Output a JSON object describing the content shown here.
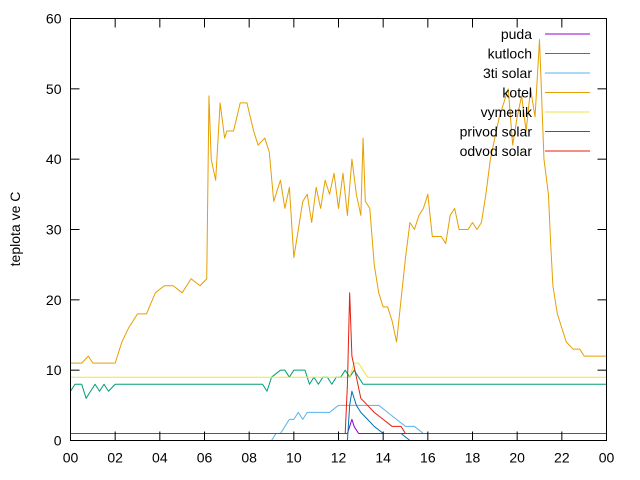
{
  "chart_data": {
    "type": "line",
    "title": "",
    "xlabel": "",
    "ylabel": "teplota ve C",
    "xlim": [
      0,
      24
    ],
    "ylim": [
      0,
      60
    ],
    "x_ticks": [
      "00",
      "02",
      "04",
      "06",
      "08",
      "10",
      "12",
      "14",
      "16",
      "18",
      "20",
      "22",
      "00"
    ],
    "y_ticks": [
      "0",
      "10",
      "20",
      "30",
      "40",
      "50",
      "60"
    ],
    "grid": false,
    "legend_position": "top-right",
    "series": [
      {
        "name": "puda",
        "color": "#9400d3",
        "x": [
          0,
          12.4,
          12.5,
          12.6,
          12.7,
          12.9,
          13.0,
          24
        ],
        "y": [
          1,
          1,
          2,
          3,
          2,
          1,
          1,
          1
        ]
      },
      {
        "name": "kutloch",
        "color": "#009e73",
        "x": [
          0,
          0.2,
          0.5,
          0.7,
          0.9,
          1.1,
          1.3,
          1.5,
          1.7,
          2.0,
          8.6,
          8.8,
          8.9,
          9.0,
          9.4,
          9.6,
          9.8,
          10.0,
          10.5,
          10.7,
          10.9,
          11.1,
          11.3,
          11.5,
          11.7,
          11.9,
          12.1,
          12.3,
          12.5,
          12.7,
          12.9,
          13.1,
          13.3,
          24
        ],
        "y": [
          7,
          8,
          8,
          6,
          7,
          8,
          7,
          8,
          7,
          8,
          8,
          7,
          8,
          9,
          10,
          10,
          9,
          10,
          10,
          8,
          9,
          8,
          9,
          9,
          8,
          9,
          9,
          10,
          9,
          10,
          9,
          8,
          8,
          8
        ]
      },
      {
        "name": "3ti solar",
        "color": "#56b4e9",
        "x": [
          0,
          9.0,
          9.2,
          9.4,
          9.6,
          9.8,
          10.0,
          10.2,
          10.4,
          10.6,
          10.8,
          11.2,
          11.6,
          12.0,
          12.3,
          12.6,
          13.0,
          13.4,
          13.8,
          14.2,
          14.6,
          15.0,
          15.4,
          15.8,
          16.0,
          24
        ],
        "y": [
          0,
          0,
          1,
          1,
          2,
          3,
          3,
          4,
          3,
          4,
          4,
          4,
          4,
          5,
          5,
          5,
          5,
          5,
          5,
          4,
          3,
          2,
          2,
          1,
          1,
          1
        ]
      },
      {
        "name": "kotel",
        "color": "#e69f00",
        "x": [
          0,
          0.5,
          0.8,
          1.0,
          1.5,
          2.0,
          2.3,
          2.6,
          3.0,
          3.4,
          3.8,
          4.2,
          4.6,
          5.0,
          5.4,
          5.8,
          6.1,
          6.2,
          6.3,
          6.5,
          6.7,
          6.9,
          7.0,
          7.3,
          7.6,
          7.9,
          8.2,
          8.4,
          8.7,
          8.9,
          9.1,
          9.2,
          9.4,
          9.6,
          9.8,
          10.0,
          10.2,
          10.4,
          10.6,
          10.8,
          11.0,
          11.2,
          11.4,
          11.6,
          11.8,
          12.0,
          12.2,
          12.4,
          12.6,
          12.8,
          13.0,
          13.1,
          13.2,
          13.4,
          13.6,
          13.8,
          14.0,
          14.2,
          14.4,
          14.6,
          14.8,
          15.0,
          15.2,
          15.4,
          15.6,
          15.8,
          16.0,
          16.2,
          16.4,
          16.6,
          16.8,
          17.0,
          17.2,
          17.4,
          17.6,
          17.8,
          18.0,
          18.2,
          18.4,
          18.6,
          18.8,
          19.0,
          19.2,
          19.4,
          19.6,
          19.8,
          20.0,
          20.2,
          20.4,
          20.6,
          20.8,
          21.0,
          21.2,
          21.4,
          21.5,
          21.6,
          21.8,
          22.0,
          22.2,
          22.5,
          22.8,
          23.0,
          23.3,
          23.6,
          24.0
        ],
        "y": [
          11,
          11,
          12,
          11,
          11,
          11,
          14,
          16,
          18,
          18,
          21,
          22,
          22,
          21,
          23,
          22,
          23,
          49,
          40,
          37,
          48,
          43,
          44,
          44,
          48,
          48,
          44,
          42,
          43,
          41,
          34,
          35,
          37,
          33,
          36,
          26,
          30,
          34,
          35,
          31,
          36,
          33,
          37,
          35,
          38,
          33,
          38,
          32,
          40,
          35,
          32,
          43,
          34,
          33,
          25,
          21,
          19,
          19,
          17,
          14,
          20,
          26,
          31,
          30,
          32,
          33,
          35,
          29,
          29,
          29,
          28,
          32,
          33,
          30,
          30,
          30,
          31,
          30,
          31,
          35,
          40,
          43,
          46,
          48,
          50,
          42,
          46,
          49,
          44,
          50,
          46,
          57,
          40,
          35,
          28,
          22,
          18,
          16,
          14,
          13,
          13,
          12,
          12,
          12,
          12
        ]
      },
      {
        "name": "vymenik",
        "color": "#f0e442",
        "x": [
          0,
          12.5,
          12.7,
          12.9,
          13.1,
          13.3,
          24
        ],
        "y": [
          9,
          9,
          11,
          11,
          10,
          9,
          9
        ]
      },
      {
        "name": "privod solar",
        "color": "#0072b2",
        "x": [
          0,
          12.4,
          12.5,
          12.6,
          12.8,
          13.0,
          13.3,
          13.6,
          14.0,
          14.4,
          14.8,
          15.2,
          24
        ],
        "y": [
          0,
          0,
          5,
          7,
          5,
          4,
          3,
          2,
          1,
          1,
          1,
          0,
          0
        ]
      },
      {
        "name": "odvod solar",
        "color": "#e51e10",
        "x": [
          0,
          12.3,
          12.4,
          12.5,
          12.6,
          12.8,
          13.0,
          13.3,
          13.6,
          14.0,
          14.4,
          14.8,
          15.0,
          24
        ],
        "y": [
          1,
          1,
          8,
          21,
          12,
          9,
          6,
          5,
          4,
          3,
          2,
          2,
          1,
          1
        ]
      }
    ]
  }
}
